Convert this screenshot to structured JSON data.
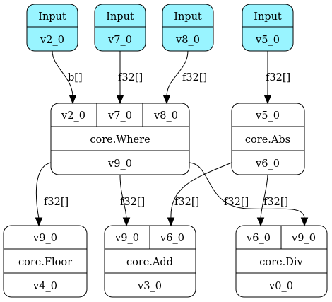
{
  "graph": {
    "inputs": [
      {
        "title": "Input",
        "output": "v2_0"
      },
      {
        "title": "Input",
        "output": "v7_0"
      },
      {
        "title": "Input",
        "output": "v8_0"
      },
      {
        "title": "Input",
        "output": "v5_0"
      }
    ],
    "ops": {
      "where": {
        "inputs": [
          "v2_0",
          "v7_0",
          "v8_0"
        ],
        "op": "core.Where",
        "outputs": [
          "v9_0"
        ]
      },
      "abs": {
        "inputs": [
          "v5_0"
        ],
        "op": "core.Abs",
        "outputs": [
          "v6_0"
        ]
      },
      "floor": {
        "inputs": [
          "v9_0"
        ],
        "op": "core.Floor",
        "outputs": [
          "v4_0"
        ]
      },
      "add": {
        "inputs": [
          "v9_0",
          "v6_0"
        ],
        "op": "core.Add",
        "outputs": [
          "v3_0"
        ]
      },
      "div": {
        "inputs": [
          "v6_0",
          "v9_0"
        ],
        "op": "core.Div",
        "outputs": [
          "v0_0"
        ]
      }
    },
    "edge_labels": {
      "in0_where": "b[]",
      "in1_where": "f32[]",
      "in2_where": "f32[]",
      "in3_abs": "f32[]",
      "where_floor": "f32[]",
      "where_add": "f32[]",
      "where_div": "f32[]",
      "abs_add": "f32[]",
      "abs_div": "f32[]"
    },
    "colors": {
      "input_fill": "#99f4ff",
      "node_fill": "#ffffff",
      "stroke": "#000000"
    }
  }
}
